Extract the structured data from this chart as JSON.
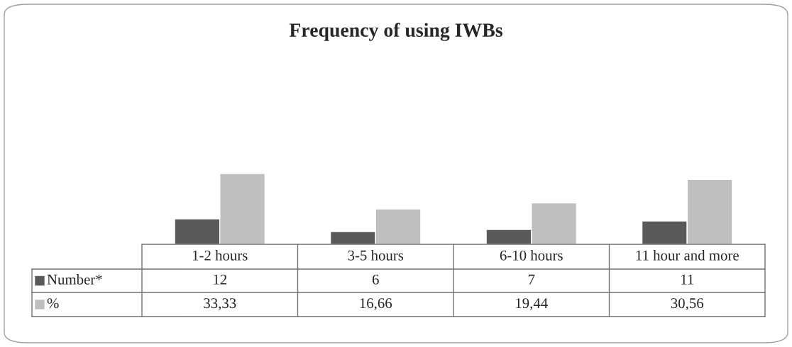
{
  "chart_data": {
    "type": "bar",
    "title": "Frequency of using IWBs",
    "categories": [
      "1-2 hours",
      "3-5 hours",
      "6-10 hours",
      "11 hour and more"
    ],
    "series": [
      {
        "name": "Number*",
        "color": "#595959",
        "values": [
          12,
          6,
          7,
          11
        ],
        "value_labels": [
          "12",
          "6",
          "7",
          "11"
        ]
      },
      {
        "name": "%",
        "color": "#bfbfbf",
        "values": [
          33.33,
          16.66,
          19.44,
          30.56
        ],
        "value_labels": [
          "33,33",
          "16,66",
          "19,44",
          "30,56"
        ]
      }
    ],
    "legend": "bottom"
  }
}
